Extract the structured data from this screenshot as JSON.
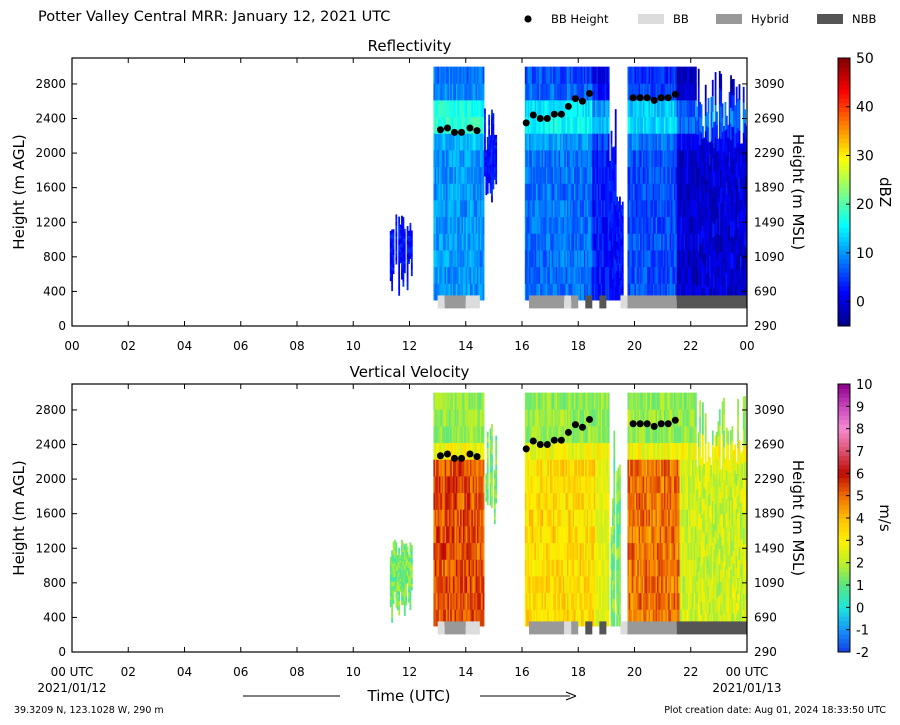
{
  "header": {
    "title": "Potter Valley Central MRR:  January 12, 2021 UTC",
    "legend": [
      {
        "label": "BB Height",
        "kind": "dot",
        "color": "#000000"
      },
      {
        "label": "BB",
        "kind": "swatch",
        "color": "#dcdcdc"
      },
      {
        "label": "Hybrid",
        "kind": "swatch",
        "color": "#999999"
      },
      {
        "label": "NBB",
        "kind": "swatch",
        "color": "#555555"
      }
    ]
  },
  "chart_data": [
    {
      "type": "heatmap",
      "title": "Reflectivity",
      "ylabel": "Height (m AGL)",
      "ylabel_right": "Height (m MSL)",
      "y_ticks": [
        0,
        400,
        800,
        1200,
        1600,
        2000,
        2400,
        2800
      ],
      "y_ticks_right": [
        290,
        690,
        1090,
        1490,
        1890,
        2290,
        2690,
        3090
      ],
      "x_ticks": [
        "00",
        "02",
        "04",
        "06",
        "08",
        "10",
        "12",
        "14",
        "16",
        "18",
        "20",
        "22",
        "00"
      ],
      "xlim_hours": [
        0,
        24
      ],
      "ylim": [
        0,
        3100
      ],
      "colorbar": {
        "label": "dBZ",
        "min": -5,
        "max": 50,
        "ticks": [
          0,
          10,
          20,
          30,
          40,
          50
        ]
      },
      "bb_height": {
        "hours": [
          13.1,
          13.35,
          13.6,
          13.85,
          14.15,
          14.4,
          16.15,
          16.4,
          16.65,
          16.9,
          17.15,
          17.4,
          17.65,
          17.9,
          18.15,
          18.4,
          19.95,
          20.2,
          20.45,
          20.7,
          20.95,
          21.2,
          21.45
        ],
        "heights": [
          2270,
          2290,
          2240,
          2240,
          2290,
          2260,
          2350,
          2440,
          2400,
          2400,
          2450,
          2450,
          2540,
          2630,
          2600,
          2690,
          2640,
          2640,
          2640,
          2610,
          2640,
          2640,
          2680
        ]
      },
      "bb_type_bar": [
        {
          "start": 13.0,
          "end": 13.25,
          "type": "BB"
        },
        {
          "start": 13.25,
          "end": 14.0,
          "type": "Hybrid"
        },
        {
          "start": 14.0,
          "end": 14.5,
          "type": "BB"
        },
        {
          "start": 16.25,
          "end": 17.5,
          "type": "Hybrid"
        },
        {
          "start": 17.5,
          "end": 17.75,
          "type": "BB"
        },
        {
          "start": 17.75,
          "end": 18.0,
          "type": "Hybrid"
        },
        {
          "start": 18.25,
          "end": 18.5,
          "type": "NBB"
        },
        {
          "start": 18.75,
          "end": 19.0,
          "type": "NBB"
        },
        {
          "start": 19.5,
          "end": 19.75,
          "type": "BB"
        },
        {
          "start": 19.75,
          "end": 21.5,
          "type": "Hybrid"
        },
        {
          "start": 21.5,
          "end": 24.0,
          "type": "NBB"
        }
      ]
    },
    {
      "type": "heatmap",
      "title": "Vertical Velocity",
      "ylabel": "Height (m AGL)",
      "ylabel_right": "Height (m MSL)",
      "y_ticks": [
        0,
        400,
        800,
        1200,
        1600,
        2000,
        2400,
        2800
      ],
      "y_ticks_right": [
        290,
        690,
        1090,
        1490,
        1890,
        2290,
        2690,
        3090
      ],
      "x_ticks": [
        "00 UTC",
        "02",
        "04",
        "06",
        "08",
        "10",
        "12",
        "14",
        "16",
        "18",
        "20",
        "22",
        "00 UTC"
      ],
      "xlim_hours": [
        0,
        24
      ],
      "ylim": [
        0,
        3100
      ],
      "colorbar": {
        "label": "m/s",
        "min": -2,
        "max": 10,
        "ticks": [
          -2,
          -1,
          0,
          1,
          2,
          3,
          4,
          5,
          6,
          7,
          8,
          9,
          10
        ]
      },
      "bb_height": {
        "hours": [
          13.1,
          13.35,
          13.6,
          13.85,
          14.15,
          14.4,
          16.15,
          16.4,
          16.65,
          16.9,
          17.15,
          17.4,
          17.65,
          17.9,
          18.15,
          18.4,
          19.95,
          20.2,
          20.45,
          20.7,
          20.95,
          21.2,
          21.45
        ],
        "heights": [
          2270,
          2290,
          2240,
          2240,
          2290,
          2260,
          2350,
          2440,
          2400,
          2400,
          2450,
          2450,
          2540,
          2630,
          2600,
          2690,
          2640,
          2640,
          2640,
          2610,
          2640,
          2640,
          2680
        ]
      },
      "bb_type_bar": [
        {
          "start": 13.0,
          "end": 13.25,
          "type": "BB"
        },
        {
          "start": 13.25,
          "end": 14.0,
          "type": "Hybrid"
        },
        {
          "start": 14.0,
          "end": 14.5,
          "type": "BB"
        },
        {
          "start": 16.25,
          "end": 17.5,
          "type": "Hybrid"
        },
        {
          "start": 17.5,
          "end": 17.75,
          "type": "BB"
        },
        {
          "start": 17.75,
          "end": 18.0,
          "type": "Hybrid"
        },
        {
          "start": 18.25,
          "end": 18.5,
          "type": "NBB"
        },
        {
          "start": 18.75,
          "end": 19.0,
          "type": "NBB"
        },
        {
          "start": 19.5,
          "end": 19.75,
          "type": "BB"
        },
        {
          "start": 19.75,
          "end": 21.5,
          "type": "Hybrid"
        },
        {
          "start": 21.5,
          "end": 24.0,
          "type": "NBB"
        }
      ]
    }
  ],
  "xaxis": {
    "label": "Time (UTC)",
    "start_date": "2021/01/12",
    "end_date": "2021/01/13"
  },
  "footer": {
    "location": "39.3209 N, 123.1028 W, 290 m",
    "created": "Plot creation date: Aug 01, 2024 18:33:50 UTC"
  }
}
